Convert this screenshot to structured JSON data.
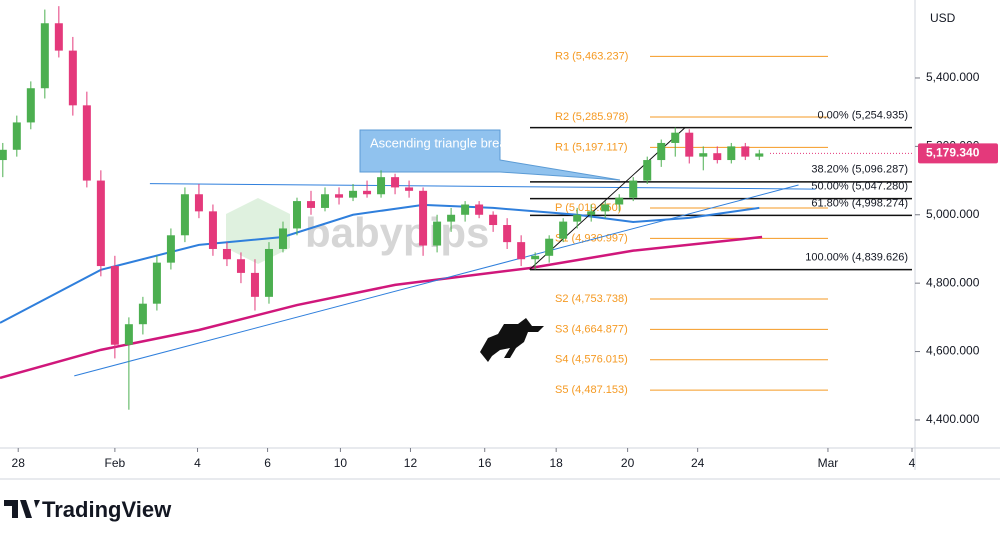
{
  "chart_data": {
    "type": "candlestick",
    "axis_unit": "USD",
    "watermark": "babypips",
    "brand": "TradingView",
    "annotation": "Ascending triangle breakout",
    "up_color": "#4caf50",
    "down_color": "#e4397b",
    "xlim": [
      -0.2,
      64.9
    ],
    "ylim": [
      4318,
      5628
    ],
    "xticks": [
      {
        "value": 1.1,
        "label": "28"
      },
      {
        "value": 8,
        "label": "Feb"
      },
      {
        "value": 13.9,
        "label": "4"
      },
      {
        "value": 18.9,
        "label": "6"
      },
      {
        "value": 24.1,
        "label": "10"
      },
      {
        "value": 29.1,
        "label": "12"
      },
      {
        "value": 34.4,
        "label": "16"
      },
      {
        "value": 39.5,
        "label": "18"
      },
      {
        "value": 44.6,
        "label": "20"
      },
      {
        "value": 49.6,
        "label": "24"
      },
      {
        "value": 58.9,
        "label": "Mar"
      },
      {
        "value": 64.9,
        "label": "4"
      }
    ],
    "yticks": [
      {
        "value": 4400,
        "label": "4,400.000"
      },
      {
        "value": 4600,
        "label": "4,600.000"
      },
      {
        "value": 4800,
        "label": "4,800.000"
      },
      {
        "value": 5000,
        "label": "5,000.000"
      },
      {
        "value": 5200,
        "label": "5,200.000"
      },
      {
        "value": 5400,
        "label": "5,400.000"
      }
    ],
    "last_price": {
      "value": 5179.34,
      "label": "5,179.340"
    },
    "open": [
      5160,
      5190,
      5270,
      5370,
      5560,
      5480,
      5320,
      5100,
      4850,
      4620,
      4680,
      4740,
      4860,
      4940,
      5060,
      5010,
      4900,
      4870,
      4830,
      4760,
      4900,
      4960,
      5040,
      5020,
      5060,
      5050,
      5070,
      5060,
      5110,
      5080,
      5070,
      4910,
      4980,
      5000,
      5030,
      5000,
      4970,
      4920,
      4870,
      4880,
      4930,
      4980,
      5000,
      5010,
      5030,
      5050,
      5100,
      5160,
      5210,
      5240,
      5170,
      5180,
      5160,
      5200,
      5170
    ],
    "high": [
      5210,
      5290,
      5390,
      5600,
      5610,
      5520,
      5360,
      5130,
      4880,
      4700,
      4760,
      4880,
      4960,
      5080,
      5090,
      5030,
      4920,
      4890,
      4870,
      4920,
      4980,
      5050,
      5070,
      5080,
      5080,
      5090,
      5100,
      5130,
      5120,
      5100,
      5080,
      5000,
      5020,
      5040,
      5040,
      5010,
      4990,
      4940,
      4890,
      4940,
      4990,
      5020,
      5030,
      5040,
      5060,
      5110,
      5170,
      5220,
      5255,
      5250,
      5200,
      5200,
      5210,
      5210,
      5190
    ],
    "low": [
      5110,
      5170,
      5250,
      5340,
      5460,
      5290,
      5080,
      4820,
      4580,
      4430,
      4650,
      4720,
      4840,
      4920,
      4990,
      4880,
      4850,
      4800,
      4720,
      4740,
      4890,
      4940,
      5000,
      5010,
      5030,
      5040,
      5050,
      5050,
      5060,
      5050,
      4880,
      4890,
      4950,
      4980,
      4990,
      4950,
      4900,
      4850,
      4840,
      4860,
      4920,
      4960,
      4980,
      4990,
      5010,
      5040,
      5090,
      5140,
      5170,
      5150,
      5130,
      5150,
      5150,
      5160,
      5160
    ],
    "close": [
      5190,
      5270,
      5370,
      5560,
      5480,
      5320,
      5100,
      4850,
      4620,
      4680,
      4740,
      4860,
      4940,
      5060,
      5010,
      4900,
      4870,
      4830,
      4760,
      4900,
      4960,
      5040,
      5020,
      5060,
      5050,
      5070,
      5060,
      5110,
      5080,
      5070,
      4910,
      4980,
      5000,
      5030,
      5000,
      4970,
      4920,
      4870,
      4880,
      4930,
      4980,
      5000,
      5010,
      5030,
      5050,
      5100,
      5160,
      5210,
      5240,
      5170,
      5180,
      5160,
      5200,
      5170,
      5179.34
    ],
    "lines": [
      {
        "color": "#2f7fdc",
        "width": 2,
        "x": [
          -0.2,
          7,
          14,
          20,
          25,
          30,
          35,
          41,
          45,
          49,
          54
        ],
        "values": [
          4684,
          4839,
          4912,
          4935,
          5000,
          5029,
          5020,
          5000,
          4979,
          4991,
          5020
        ]
      },
      {
        "color": "#d0177b",
        "width": 2.5,
        "x": [
          -0.2,
          7,
          14,
          21,
          28,
          37.6,
          45,
          54.2
        ],
        "values": [
          4523,
          4605,
          4663,
          4736,
          4795,
          4844,
          4895,
          4935
        ]
      },
      {
        "color": "#2f7fdc",
        "width": 1,
        "x": [
          5.1,
          56.8
        ],
        "values": [
          4529,
          5087
        ]
      },
      {
        "color": "#2f7fdc",
        "width": 1,
        "x": [
          10.5,
          58
        ],
        "values": [
          5091,
          5075
        ]
      },
      {
        "color": "#111111",
        "width": 1,
        "x": [
          37.6,
          48.7
        ],
        "values": [
          4839.626,
          5254.935
        ]
      }
    ],
    "fib_levels": [
      {
        "value": 5254.935,
        "label": "0.00% (5,254.935)"
      },
      {
        "value": 5096.287,
        "label": "38.20% (5,096.287)"
      },
      {
        "value": 5047.28,
        "label": "50.00% (5,047.280)"
      },
      {
        "value": 4998.274,
        "label": "61.80% (4,998.274)"
      },
      {
        "value": 4839.626,
        "label": "100.00% (4,839.626)"
      }
    ],
    "pivot_color": "#f59a23",
    "pivot_levels": [
      {
        "value": 5463.237,
        "label": "R3 (5,463.237)"
      },
      {
        "value": 5285.978,
        "label": "R2 (5,285.978)"
      },
      {
        "value": 5197.117,
        "label": "R1 (5,197.117)"
      },
      {
        "value": 5019.85,
        "label": "P (5,019.850)"
      },
      {
        "value": 4930.997,
        "label": "S1 (4,930.997)"
      },
      {
        "value": 4753.738,
        "label": "S2 (4,753.738)"
      },
      {
        "value": 4664.877,
        "label": "S3 (4,664.877)"
      },
      {
        "value": 4576.015,
        "label": "S4 (4,576.015)"
      },
      {
        "value": 4487.153,
        "label": "S5 (4,487.153)"
      }
    ]
  }
}
